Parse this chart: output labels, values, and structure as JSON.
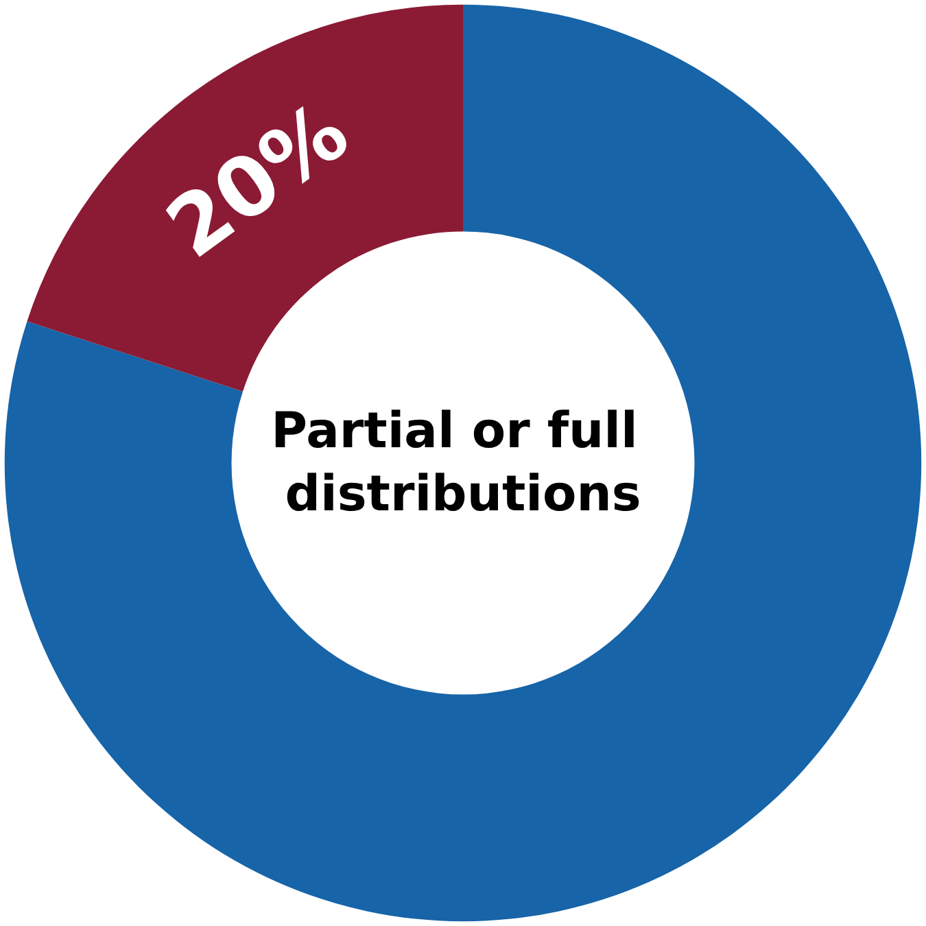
{
  "chart_data": {
    "type": "donut",
    "title": "Partial or full distributions",
    "categories": [
      null,
      null
    ],
    "values": [
      80,
      20
    ],
    "colors": [
      "#1764a8",
      "#8b1a35"
    ],
    "value_labels": [
      null,
      "20%"
    ]
  }
}
